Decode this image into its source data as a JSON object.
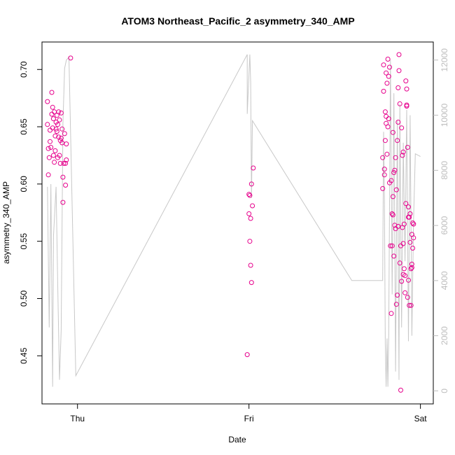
{
  "chart_data": {
    "type": "scatter",
    "title": "ATOM3 Northeast_Pacific_2 asymmetry_340_AMP",
    "xlabel": "Date",
    "ylabel": "asymmetry_340_AMP",
    "x_tick_labels": [
      "Thu",
      "Fri",
      "Sat"
    ],
    "y_ticks": [
      0.45,
      0.5,
      0.55,
      0.6,
      0.65,
      0.7
    ],
    "y_tick_labels": [
      "0.45",
      "0.50",
      "0.55",
      "0.60",
      "0.65",
      "0.70"
    ],
    "ylim": [
      0.408,
      0.724
    ],
    "xlim_days": [
      -0.207,
      2.075
    ],
    "y2_ticks": [
      0,
      2000,
      4000,
      6000,
      8000,
      10000,
      12000
    ],
    "y2_tick_labels": [
      "0",
      "2000",
      "4000",
      "6000",
      "8000",
      "10000",
      "12000"
    ],
    "y2lim": [
      -473,
      12655
    ],
    "colors": {
      "points": "#e6008c",
      "line": "#c8c8c8",
      "axis2": "#bdbdbd"
    },
    "series": [
      {
        "values": [
          {
            "x": -0.175,
            "y": 0.672
          },
          {
            "x": -0.175,
            "y": 0.652
          },
          {
            "x": -0.17,
            "y": 0.631
          },
          {
            "x": -0.17,
            "y": 0.608
          },
          {
            "x": -0.165,
            "y": 0.623
          },
          {
            "x": -0.16,
            "y": 0.647
          },
          {
            "x": -0.16,
            "y": 0.637
          },
          {
            "x": -0.155,
            "y": 0.632
          },
          {
            "x": -0.15,
            "y": 0.68
          },
          {
            "x": -0.15,
            "y": 0.661
          },
          {
            "x": -0.145,
            "y": 0.667
          },
          {
            "x": -0.145,
            "y": 0.649
          },
          {
            "x": -0.14,
            "y": 0.625
          },
          {
            "x": -0.14,
            "y": 0.657
          },
          {
            "x": -0.135,
            "y": 0.619
          },
          {
            "x": -0.135,
            "y": 0.663
          },
          {
            "x": -0.13,
            "y": 0.642
          },
          {
            "x": -0.13,
            "y": 0.629
          },
          {
            "x": -0.125,
            "y": 0.654
          },
          {
            "x": -0.125,
            "y": 0.648
          },
          {
            "x": -0.12,
            "y": 0.66
          },
          {
            "x": -0.12,
            "y": 0.646
          },
          {
            "x": -0.115,
            "y": 0.652
          },
          {
            "x": -0.115,
            "y": 0.623
          },
          {
            "x": -0.11,
            "y": 0.663
          },
          {
            "x": -0.11,
            "y": 0.641
          },
          {
            "x": -0.105,
            "y": 0.625
          },
          {
            "x": -0.105,
            "y": 0.656
          },
          {
            "x": -0.1,
            "y": 0.638
          },
          {
            "x": -0.1,
            "y": 0.618
          },
          {
            "x": -0.095,
            "y": 0.64
          },
          {
            "x": -0.095,
            "y": 0.662
          },
          {
            "x": -0.09,
            "y": 0.648
          },
          {
            "x": -0.09,
            "y": 0.636
          },
          {
            "x": -0.085,
            "y": 0.606
          },
          {
            "x": -0.085,
            "y": 0.584
          },
          {
            "x": -0.08,
            "y": 0.618
          },
          {
            "x": -0.075,
            "y": 0.644
          },
          {
            "x": -0.07,
            "y": 0.618
          },
          {
            "x": -0.07,
            "y": 0.599
          },
          {
            "x": -0.065,
            "y": 0.621
          },
          {
            "x": -0.065,
            "y": 0.635
          },
          {
            "x": -0.04,
            "y": 0.71
          },
          {
            "x": 0.99,
            "y": 0.451
          },
          {
            "x": 1.0,
            "y": 0.591
          },
          {
            "x": 1.0,
            "y": 0.574
          },
          {
            "x": 1.005,
            "y": 0.59
          },
          {
            "x": 1.005,
            "y": 0.55
          },
          {
            "x": 1.01,
            "y": 0.57
          },
          {
            "x": 1.01,
            "y": 0.529
          },
          {
            "x": 1.015,
            "y": 0.6
          },
          {
            "x": 1.015,
            "y": 0.514
          },
          {
            "x": 1.02,
            "y": 0.581
          },
          {
            "x": 1.025,
            "y": 0.614
          },
          {
            "x": 1.78,
            "y": 0.596
          },
          {
            "x": 1.785,
            "y": 0.704
          },
          {
            "x": 1.785,
            "y": 0.681
          },
          {
            "x": 1.79,
            "y": 0.608
          },
          {
            "x": 1.79,
            "y": 0.613
          },
          {
            "x": 1.795,
            "y": 0.663
          },
          {
            "x": 1.795,
            "y": 0.638
          },
          {
            "x": 1.8,
            "y": 0.697
          },
          {
            "x": 1.8,
            "y": 0.659
          },
          {
            "x": 1.805,
            "y": 0.688
          },
          {
            "x": 1.805,
            "y": 0.626
          },
          {
            "x": 1.81,
            "y": 0.709
          },
          {
            "x": 1.81,
            "y": 0.65
          },
          {
            "x": 1.815,
            "y": 0.694
          },
          {
            "x": 1.815,
            "y": 0.657
          },
          {
            "x": 1.82,
            "y": 0.702
          },
          {
            "x": 1.82,
            "y": 0.601
          },
          {
            "x": 1.825,
            "y": 0.546
          },
          {
            "x": 1.83,
            "y": 0.487
          },
          {
            "x": 1.83,
            "y": 0.603
          },
          {
            "x": 1.835,
            "y": 0.574
          },
          {
            "x": 1.835,
            "y": 0.546
          },
          {
            "x": 1.84,
            "y": 0.645
          },
          {
            "x": 1.84,
            "y": 0.573
          },
          {
            "x": 1.845,
            "y": 0.61
          },
          {
            "x": 1.845,
            "y": 0.537
          },
          {
            "x": 1.85,
            "y": 0.564
          },
          {
            "x": 1.85,
            "y": 0.612
          },
          {
            "x": 1.855,
            "y": 0.623
          },
          {
            "x": 1.855,
            "y": 0.561
          },
          {
            "x": 1.86,
            "y": 0.595
          },
          {
            "x": 1.86,
            "y": 0.495
          },
          {
            "x": 1.865,
            "y": 0.503
          },
          {
            "x": 1.865,
            "y": 0.638
          },
          {
            "x": 1.87,
            "y": 0.684
          },
          {
            "x": 1.87,
            "y": 0.563
          },
          {
            "x": 1.875,
            "y": 0.713
          },
          {
            "x": 1.875,
            "y": 0.699
          },
          {
            "x": 1.88,
            "y": 0.67
          },
          {
            "x": 1.88,
            "y": 0.531
          },
          {
            "x": 1.885,
            "y": 0.546
          },
          {
            "x": 1.885,
            "y": 0.42
          },
          {
            "x": 1.89,
            "y": 0.649
          },
          {
            "x": 1.89,
            "y": 0.515
          },
          {
            "x": 1.895,
            "y": 0.625
          },
          {
            "x": 1.895,
            "y": 0.562
          },
          {
            "x": 1.9,
            "y": 0.628
          },
          {
            "x": 1.9,
            "y": 0.521
          },
          {
            "x": 1.905,
            "y": 0.526
          },
          {
            "x": 1.905,
            "y": 0.565
          },
          {
            "x": 1.91,
            "y": 0.505
          },
          {
            "x": 1.91,
            "y": 0.52
          },
          {
            "x": 1.915,
            "y": 0.583
          },
          {
            "x": 1.915,
            "y": 0.69
          },
          {
            "x": 1.92,
            "y": 0.683
          },
          {
            "x": 1.92,
            "y": 0.668
          },
          {
            "x": 1.925,
            "y": 0.632
          },
          {
            "x": 1.925,
            "y": 0.501
          },
          {
            "x": 1.93,
            "y": 0.571
          },
          {
            "x": 1.93,
            "y": 0.516
          },
          {
            "x": 1.935,
            "y": 0.571
          },
          {
            "x": 1.935,
            "y": 0.494
          },
          {
            "x": 1.94,
            "y": 0.574
          },
          {
            "x": 1.94,
            "y": 0.549
          },
          {
            "x": 1.945,
            "y": 0.526
          },
          {
            "x": 1.945,
            "y": 0.494
          },
          {
            "x": 1.95,
            "y": 0.556
          },
          {
            "x": 1.95,
            "y": 0.527
          },
          {
            "x": 1.955,
            "y": 0.566
          },
          {
            "x": 1.955,
            "y": 0.544
          },
          {
            "x": 1.96,
            "y": 0.553
          },
          {
            "x": 1.96,
            "y": 0.565
          },
          {
            "x": 1.78,
            "y": 0.623
          },
          {
            "x": 1.8,
            "y": 0.653
          },
          {
            "x": 1.84,
            "y": 0.589
          },
          {
            "x": 1.87,
            "y": 0.654
          },
          {
            "x": 1.9,
            "y": 0.548
          },
          {
            "x": 1.92,
            "y": 0.669
          },
          {
            "x": 1.93,
            "y": 0.58
          },
          {
            "x": 1.95,
            "y": 0.53
          }
        ]
      },
      {
        "axis": "right",
        "values": [
          {
            "x": -0.175,
            "y": 7400
          },
          {
            "x": -0.165,
            "y": 2300
          },
          {
            "x": -0.16,
            "y": 4900
          },
          {
            "x": -0.155,
            "y": 7500
          },
          {
            "x": -0.145,
            "y": 150
          },
          {
            "x": -0.14,
            "y": 5600
          },
          {
            "x": -0.125,
            "y": 7400
          },
          {
            "x": -0.115,
            "y": 3800
          },
          {
            "x": -0.105,
            "y": 400
          },
          {
            "x": -0.095,
            "y": 2200
          },
          {
            "x": -0.085,
            "y": 9700
          },
          {
            "x": -0.075,
            "y": 11700
          },
          {
            "x": -0.065,
            "y": 12000
          },
          {
            "x": -0.05,
            "y": 12100
          },
          {
            "x": -0.01,
            "y": 550
          },
          {
            "x": 1.6,
            "y": 4000
          },
          {
            "x": 0.99,
            "y": 12200
          },
          {
            "x": 1.005,
            "y": 12200
          },
          {
            "x": 1.01,
            "y": 11200
          },
          {
            "x": 1.015,
            "y": 7000
          },
          {
            "x": 1.02,
            "y": 9800
          },
          {
            "x": 1.78,
            "y": 4000
          },
          {
            "x": 1.785,
            "y": 9400
          },
          {
            "x": 1.79,
            "y": 7000
          },
          {
            "x": 1.795,
            "y": 1700
          },
          {
            "x": 1.8,
            "y": 150
          },
          {
            "x": 1.805,
            "y": 1900
          },
          {
            "x": 1.81,
            "y": 150
          },
          {
            "x": 1.815,
            "y": 2000
          },
          {
            "x": 1.825,
            "y": 12000
          },
          {
            "x": 1.835,
            "y": 3500
          },
          {
            "x": 1.845,
            "y": 10800
          },
          {
            "x": 1.855,
            "y": 700
          },
          {
            "x": 1.865,
            "y": 9800
          },
          {
            "x": 1.875,
            "y": 400
          },
          {
            "x": 1.88,
            "y": 10400
          },
          {
            "x": 1.89,
            "y": 2300
          },
          {
            "x": 1.9,
            "y": 9000
          },
          {
            "x": 1.91,
            "y": 4700
          },
          {
            "x": 1.92,
            "y": 10200
          },
          {
            "x": 1.93,
            "y": 1800
          },
          {
            "x": 1.94,
            "y": 10000
          },
          {
            "x": 1.95,
            "y": 2000
          },
          {
            "x": 1.96,
            "y": 6200
          },
          {
            "x": 1.97,
            "y": 8600
          },
          {
            "x": 0.99,
            "y": 10050
          },
          {
            "x": 2.0,
            "y": 8500
          }
        ]
      }
    ]
  }
}
